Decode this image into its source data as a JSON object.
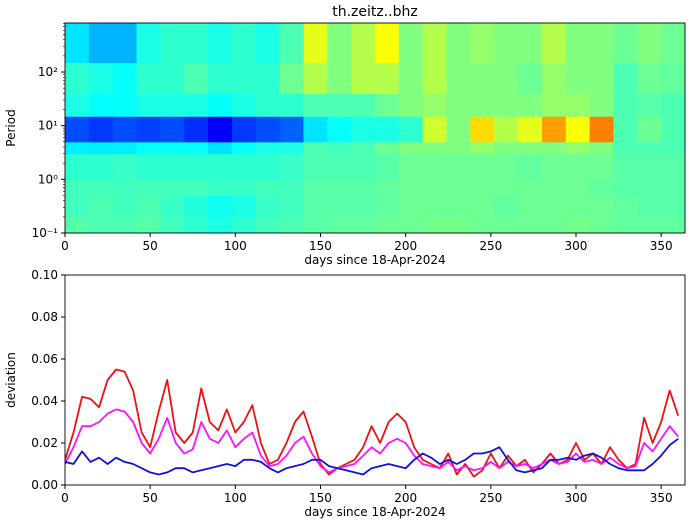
{
  "chart_data": [
    {
      "type": "heatmap",
      "title": "th.zeitz..bhz",
      "xlabel": "days since 18-Apr-2024",
      "ylabel": "Period",
      "log_y": true,
      "colormap": "jet",
      "zlim": [
        0,
        1
      ],
      "xlim": [
        0,
        364
      ],
      "xticks": [
        0,
        50,
        100,
        150,
        200,
        250,
        300,
        350
      ],
      "ylim": [
        0.1,
        820
      ],
      "yticks": [
        {
          "value": 0.1,
          "label": "10⁻¹"
        },
        {
          "value": 1,
          "label": "10⁰"
        },
        {
          "value": 10,
          "label": "10¹"
        },
        {
          "value": 100,
          "label": "10²"
        }
      ],
      "x_edges": [
        0,
        14,
        28,
        42,
        56,
        70,
        84,
        98,
        112,
        126,
        140,
        154,
        168,
        182,
        196,
        210,
        224,
        238,
        252,
        266,
        280,
        294,
        308,
        322,
        336,
        350,
        364
      ],
      "y_edges": [
        0.1,
        0.2,
        0.5,
        1,
        3,
        5,
        15,
        40,
        150,
        820
      ],
      "z": [
        [
          0.46,
          0.45,
          0.45,
          0.46,
          0.44,
          0.42,
          0.4,
          0.42,
          0.44,
          0.45,
          0.46,
          0.47,
          0.47,
          0.48,
          0.48,
          0.49,
          0.49,
          0.48,
          0.48,
          0.48,
          0.48,
          0.49,
          0.48,
          0.47,
          0.47,
          0.47
        ],
        [
          0.44,
          0.45,
          0.44,
          0.45,
          0.43,
          0.41,
          0.39,
          0.4,
          0.43,
          0.44,
          0.46,
          0.46,
          0.46,
          0.47,
          0.48,
          0.48,
          0.48,
          0.48,
          0.47,
          0.48,
          0.48,
          0.48,
          0.48,
          0.47,
          0.46,
          0.46
        ],
        [
          0.44,
          0.44,
          0.44,
          0.44,
          0.44,
          0.44,
          0.43,
          0.43,
          0.44,
          0.44,
          0.46,
          0.46,
          0.46,
          0.47,
          0.48,
          0.48,
          0.48,
          0.48,
          0.48,
          0.48,
          0.48,
          0.48,
          0.47,
          0.46,
          0.46,
          0.46
        ],
        [
          0.42,
          0.42,
          0.43,
          0.42,
          0.42,
          0.42,
          0.42,
          0.42,
          0.42,
          0.43,
          0.45,
          0.45,
          0.45,
          0.46,
          0.48,
          0.48,
          0.48,
          0.48,
          0.48,
          0.47,
          0.48,
          0.48,
          0.48,
          0.46,
          0.46,
          0.46
        ],
        [
          0.36,
          0.36,
          0.36,
          0.38,
          0.38,
          0.38,
          0.35,
          0.38,
          0.4,
          0.4,
          0.45,
          0.44,
          0.45,
          0.48,
          0.5,
          0.5,
          0.5,
          0.52,
          0.5,
          0.5,
          0.5,
          0.52,
          0.5,
          0.45,
          0.45,
          0.45
        ],
        [
          0.2,
          0.18,
          0.2,
          0.19,
          0.2,
          0.17,
          0.12,
          0.18,
          0.2,
          0.22,
          0.35,
          0.38,
          0.4,
          0.4,
          0.42,
          0.58,
          0.5,
          0.66,
          0.55,
          0.6,
          0.72,
          0.62,
          0.75,
          0.45,
          0.48,
          0.45
        ],
        [
          0.4,
          0.38,
          0.38,
          0.4,
          0.4,
          0.4,
          0.38,
          0.4,
          0.42,
          0.42,
          0.45,
          0.45,
          0.45,
          0.48,
          0.5,
          0.52,
          0.5,
          0.5,
          0.5,
          0.5,
          0.52,
          0.52,
          0.5,
          0.45,
          0.46,
          0.45
        ],
        [
          0.42,
          0.4,
          0.38,
          0.42,
          0.42,
          0.45,
          0.42,
          0.42,
          0.42,
          0.48,
          0.55,
          0.5,
          0.55,
          0.55,
          0.5,
          0.55,
          0.5,
          0.5,
          0.5,
          0.48,
          0.52,
          0.5,
          0.5,
          0.45,
          0.48,
          0.47
        ],
        [
          0.35,
          0.3,
          0.3,
          0.4,
          0.42,
          0.42,
          0.4,
          0.42,
          0.4,
          0.45,
          0.6,
          0.5,
          0.55,
          0.62,
          0.5,
          0.55,
          0.5,
          0.52,
          0.5,
          0.5,
          0.55,
          0.5,
          0.5,
          0.48,
          0.5,
          0.48
        ]
      ]
    },
    {
      "type": "line",
      "xlabel": "days since 18-Apr-2024",
      "ylabel": "deviation",
      "xlim": [
        0,
        364
      ],
      "xticks": [
        0,
        50,
        100,
        150,
        200,
        250,
        300,
        350
      ],
      "ylim": [
        0,
        0.1
      ],
      "yticks": [
        {
          "value": 0,
          "label": "0.00"
        },
        {
          "value": 0.02,
          "label": "0.02"
        },
        {
          "value": 0.04,
          "label": "0.04"
        },
        {
          "value": 0.06,
          "label": "0.06"
        },
        {
          "value": 0.08,
          "label": "0.08"
        },
        {
          "value": 0.1,
          "label": "0.10"
        }
      ],
      "x": [
        0,
        5,
        10,
        15,
        20,
        25,
        30,
        35,
        40,
        45,
        50,
        55,
        60,
        65,
        70,
        75,
        80,
        85,
        90,
        95,
        100,
        105,
        110,
        115,
        120,
        125,
        130,
        135,
        140,
        145,
        150,
        155,
        160,
        165,
        170,
        175,
        180,
        185,
        190,
        195,
        200,
        205,
        210,
        215,
        220,
        225,
        230,
        235,
        240,
        245,
        250,
        255,
        260,
        265,
        270,
        275,
        280,
        285,
        290,
        295,
        300,
        305,
        310,
        315,
        320,
        325,
        330,
        335,
        340,
        345,
        350,
        355,
        360
      ],
      "series": [
        {
          "color": "#ee1111",
          "values": [
            0.012,
            0.025,
            0.042,
            0.041,
            0.037,
            0.05,
            0.055,
            0.054,
            0.045,
            0.025,
            0.018,
            0.035,
            0.05,
            0.025,
            0.02,
            0.025,
            0.046,
            0.03,
            0.026,
            0.036,
            0.025,
            0.03,
            0.038,
            0.02,
            0.01,
            0.012,
            0.02,
            0.03,
            0.035,
            0.023,
            0.01,
            0.005,
            0.008,
            0.01,
            0.012,
            0.018,
            0.028,
            0.02,
            0.03,
            0.034,
            0.03,
            0.018,
            0.012,
            0.01,
            0.008,
            0.015,
            0.005,
            0.01,
            0.004,
            0.007,
            0.015,
            0.008,
            0.014,
            0.009,
            0.012,
            0.006,
            0.01,
            0.015,
            0.01,
            0.012,
            0.02,
            0.012,
            0.015,
            0.01,
            0.018,
            0.012,
            0.008,
            0.01,
            0.032,
            0.02,
            0.03,
            0.045,
            0.033
          ]
        },
        {
          "color": "#ff11ff",
          "values": [
            0.01,
            0.018,
            0.028,
            0.028,
            0.03,
            0.034,
            0.036,
            0.035,
            0.03,
            0.02,
            0.015,
            0.022,
            0.032,
            0.02,
            0.015,
            0.017,
            0.03,
            0.022,
            0.02,
            0.026,
            0.018,
            0.022,
            0.025,
            0.014,
            0.009,
            0.01,
            0.014,
            0.02,
            0.023,
            0.015,
            0.009,
            0.006,
            0.008,
            0.009,
            0.01,
            0.014,
            0.018,
            0.015,
            0.02,
            0.022,
            0.02,
            0.014,
            0.01,
            0.009,
            0.008,
            0.011,
            0.007,
            0.009,
            0.007,
            0.008,
            0.011,
            0.008,
            0.011,
            0.009,
            0.01,
            0.008,
            0.01,
            0.012,
            0.01,
            0.011,
            0.015,
            0.011,
            0.012,
            0.01,
            0.013,
            0.01,
            0.008,
            0.009,
            0.02,
            0.016,
            0.022,
            0.028,
            0.023
          ]
        },
        {
          "color": "#1111dd",
          "values": [
            0.011,
            0.01,
            0.016,
            0.011,
            0.013,
            0.01,
            0.013,
            0.011,
            0.01,
            0.008,
            0.006,
            0.005,
            0.006,
            0.008,
            0.008,
            0.006,
            0.007,
            0.008,
            0.009,
            0.01,
            0.009,
            0.012,
            0.012,
            0.011,
            0.008,
            0.006,
            0.008,
            0.009,
            0.01,
            0.012,
            0.012,
            0.009,
            0.008,
            0.007,
            0.006,
            0.005,
            0.008,
            0.009,
            0.01,
            0.009,
            0.008,
            0.012,
            0.015,
            0.013,
            0.01,
            0.012,
            0.01,
            0.012,
            0.015,
            0.015,
            0.016,
            0.018,
            0.012,
            0.007,
            0.006,
            0.007,
            0.008,
            0.012,
            0.012,
            0.013,
            0.012,
            0.014,
            0.015,
            0.013,
            0.01,
            0.008,
            0.007,
            0.007,
            0.007,
            0.01,
            0.014,
            0.019,
            0.022
          ]
        }
      ]
    }
  ]
}
